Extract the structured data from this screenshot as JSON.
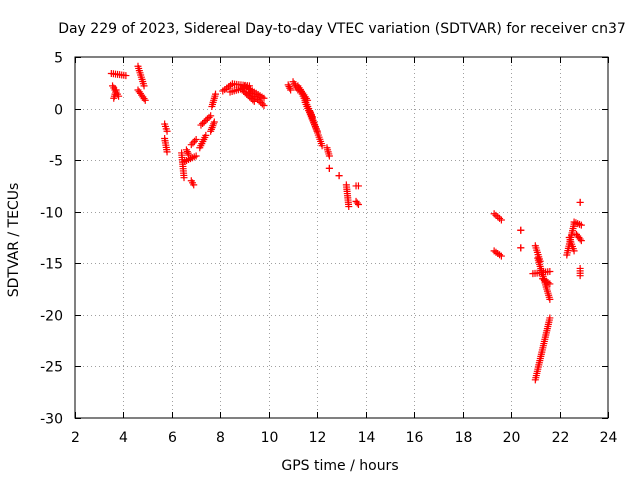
{
  "chart_data": {
    "type": "scatter",
    "title": "Day 229 of 2023, Sidereal Day-to-day VTEC variation (SDTVAR) for receiver cn37",
    "xlabel": "GPS time / hours",
    "ylabel": "SDTVAR / TECUs",
    "xlim": [
      2,
      24
    ],
    "ylim": [
      -30,
      5
    ],
    "grid": true,
    "marker": "+",
    "marker_color": "#ff0000",
    "x_ticks": [
      {
        "value": 2,
        "label": "2"
      },
      {
        "value": 4,
        "label": "4"
      },
      {
        "value": 6,
        "label": "6"
      },
      {
        "value": 8,
        "label": "8"
      },
      {
        "value": 10,
        "label": "10"
      },
      {
        "value": 12,
        "label": "12"
      },
      {
        "value": 14,
        "label": "14"
      },
      {
        "value": 16,
        "label": "16"
      },
      {
        "value": 18,
        "label": "18"
      },
      {
        "value": 20,
        "label": "20"
      },
      {
        "value": 22,
        "label": "22"
      },
      {
        "value": 24,
        "label": "24"
      }
    ],
    "y_ticks": [
      {
        "value": 5,
        "label": "5"
      },
      {
        "value": 0,
        "label": "0"
      },
      {
        "value": -5,
        "label": "-5"
      },
      {
        "value": -10,
        "label": "-10"
      },
      {
        "value": -15,
        "label": "-15"
      },
      {
        "value": -20,
        "label": "-20"
      },
      {
        "value": -25,
        "label": "-25"
      },
      {
        "value": -30,
        "label": "-30"
      }
    ],
    "segments": [
      {
        "x0": 3.5,
        "x1": 4.1,
        "y0": 3.4,
        "y1": 3.2
      },
      {
        "x0": 3.55,
        "x1": 3.8,
        "y0": 2.2,
        "y1": 1.2
      },
      {
        "x0": 3.6,
        "x1": 3.7,
        "y0": 1.0,
        "y1": 1.8
      },
      {
        "x0": 4.6,
        "x1": 4.85,
        "y0": 4.1,
        "y1": 2.2
      },
      {
        "x0": 4.6,
        "x1": 4.9,
        "y0": 1.8,
        "y1": 0.8
      },
      {
        "x0": 5.7,
        "x1": 5.8,
        "y0": -1.5,
        "y1": -2.2
      },
      {
        "x0": 5.7,
        "x1": 5.8,
        "y0": -2.9,
        "y1": -4.2
      },
      {
        "x0": 6.4,
        "x1": 6.5,
        "y0": -4.3,
        "y1": -6.7
      },
      {
        "x0": 6.45,
        "x1": 7.0,
        "y0": -5.2,
        "y1": -4.6
      },
      {
        "x0": 6.6,
        "x1": 6.7,
        "y0": -4.0,
        "y1": -4.5
      },
      {
        "x0": 6.8,
        "x1": 6.9,
        "y0": -7.0,
        "y1": -7.4
      },
      {
        "x0": 6.8,
        "x1": 7.0,
        "y0": -3.5,
        "y1": -3.0
      },
      {
        "x0": 7.15,
        "x1": 7.4,
        "y0": -3.8,
        "y1": -2.6
      },
      {
        "x0": 7.2,
        "x1": 7.6,
        "y0": -1.6,
        "y1": -0.7
      },
      {
        "x0": 7.6,
        "x1": 7.75,
        "y0": -2.2,
        "y1": -1.3
      },
      {
        "x0": 7.65,
        "x1": 7.8,
        "y0": 0.2,
        "y1": 1.4
      },
      {
        "x0": 8.1,
        "x1": 8.5,
        "y0": 1.7,
        "y1": 2.4
      },
      {
        "x0": 8.5,
        "x1": 9.2,
        "y0": 2.4,
        "y1": 2.2
      },
      {
        "x0": 8.4,
        "x1": 9.0,
        "y0": 1.6,
        "y1": 2.0
      },
      {
        "x0": 9.0,
        "x1": 9.8,
        "y0": 2.2,
        "y1": 1.0
      },
      {
        "x0": 8.9,
        "x1": 9.4,
        "y0": 1.8,
        "y1": 0.7
      },
      {
        "x0": 9.2,
        "x1": 9.8,
        "y0": 1.6,
        "y1": 0.3
      },
      {
        "x0": 10.8,
        "x1": 10.9,
        "y0": 2.3,
        "y1": 1.8
      },
      {
        "x0": 11.0,
        "x1": 11.2,
        "y0": 2.6,
        "y1": 1.8
      },
      {
        "x0": 11.2,
        "x1": 11.6,
        "y0": 2.2,
        "y1": 0.8
      },
      {
        "x0": 11.3,
        "x1": 11.8,
        "y0": 1.8,
        "y1": -0.8
      },
      {
        "x0": 11.5,
        "x1": 12.0,
        "y0": 0.6,
        "y1": -2.2
      },
      {
        "x0": 11.7,
        "x1": 12.2,
        "y0": -0.3,
        "y1": -3.6
      },
      {
        "x0": 12.4,
        "x1": 12.5,
        "y0": -3.8,
        "y1": -4.6
      },
      {
        "x0": 12.5,
        "x1": 12.5,
        "y0": -5.8,
        "y1": -5.8
      },
      {
        "x0": 12.9,
        "x1": 12.9,
        "y0": -6.5,
        "y1": -6.5
      },
      {
        "x0": 13.2,
        "x1": 13.3,
        "y0": -7.4,
        "y1": -9.5
      },
      {
        "x0": 13.6,
        "x1": 13.7,
        "y0": -7.5,
        "y1": -7.5
      },
      {
        "x0": 13.6,
        "x1": 13.7,
        "y0": -9.0,
        "y1": -9.3
      },
      {
        "x0": 19.3,
        "x1": 19.6,
        "y0": -10.2,
        "y1": -10.8
      },
      {
        "x0": 19.3,
        "x1": 19.6,
        "y0": -13.8,
        "y1": -14.3
      },
      {
        "x0": 20.4,
        "x1": 20.4,
        "y0": -11.8,
        "y1": -11.8
      },
      {
        "x0": 20.4,
        "x1": 20.4,
        "y0": -13.5,
        "y1": -13.5
      },
      {
        "x0": 21.0,
        "x1": 21.6,
        "y0": -26.3,
        "y1": -20.3
      },
      {
        "x0": 21.0,
        "x1": 21.2,
        "y0": -13.3,
        "y1": -14.8
      },
      {
        "x0": 21.1,
        "x1": 21.6,
        "y0": -14.5,
        "y1": -18.5
      },
      {
        "x0": 20.9,
        "x1": 21.6,
        "y0": -16.0,
        "y1": -15.8
      },
      {
        "x0": 21.3,
        "x1": 21.6,
        "y0": -16.5,
        "y1": -17.0
      },
      {
        "x0": 22.3,
        "x1": 22.6,
        "y0": -14.2,
        "y1": -11.2
      },
      {
        "x0": 22.4,
        "x1": 22.6,
        "y0": -12.5,
        "y1": -13.8
      },
      {
        "x0": 22.6,
        "x1": 22.9,
        "y0": -11.0,
        "y1": -11.3
      },
      {
        "x0": 22.7,
        "x1": 22.9,
        "y0": -12.2,
        "y1": -12.8
      },
      {
        "x0": 22.85,
        "x1": 22.85,
        "y0": -9.1,
        "y1": -9.1
      },
      {
        "x0": 22.85,
        "x1": 22.85,
        "y0": -15.5,
        "y1": -16.2
      }
    ]
  }
}
